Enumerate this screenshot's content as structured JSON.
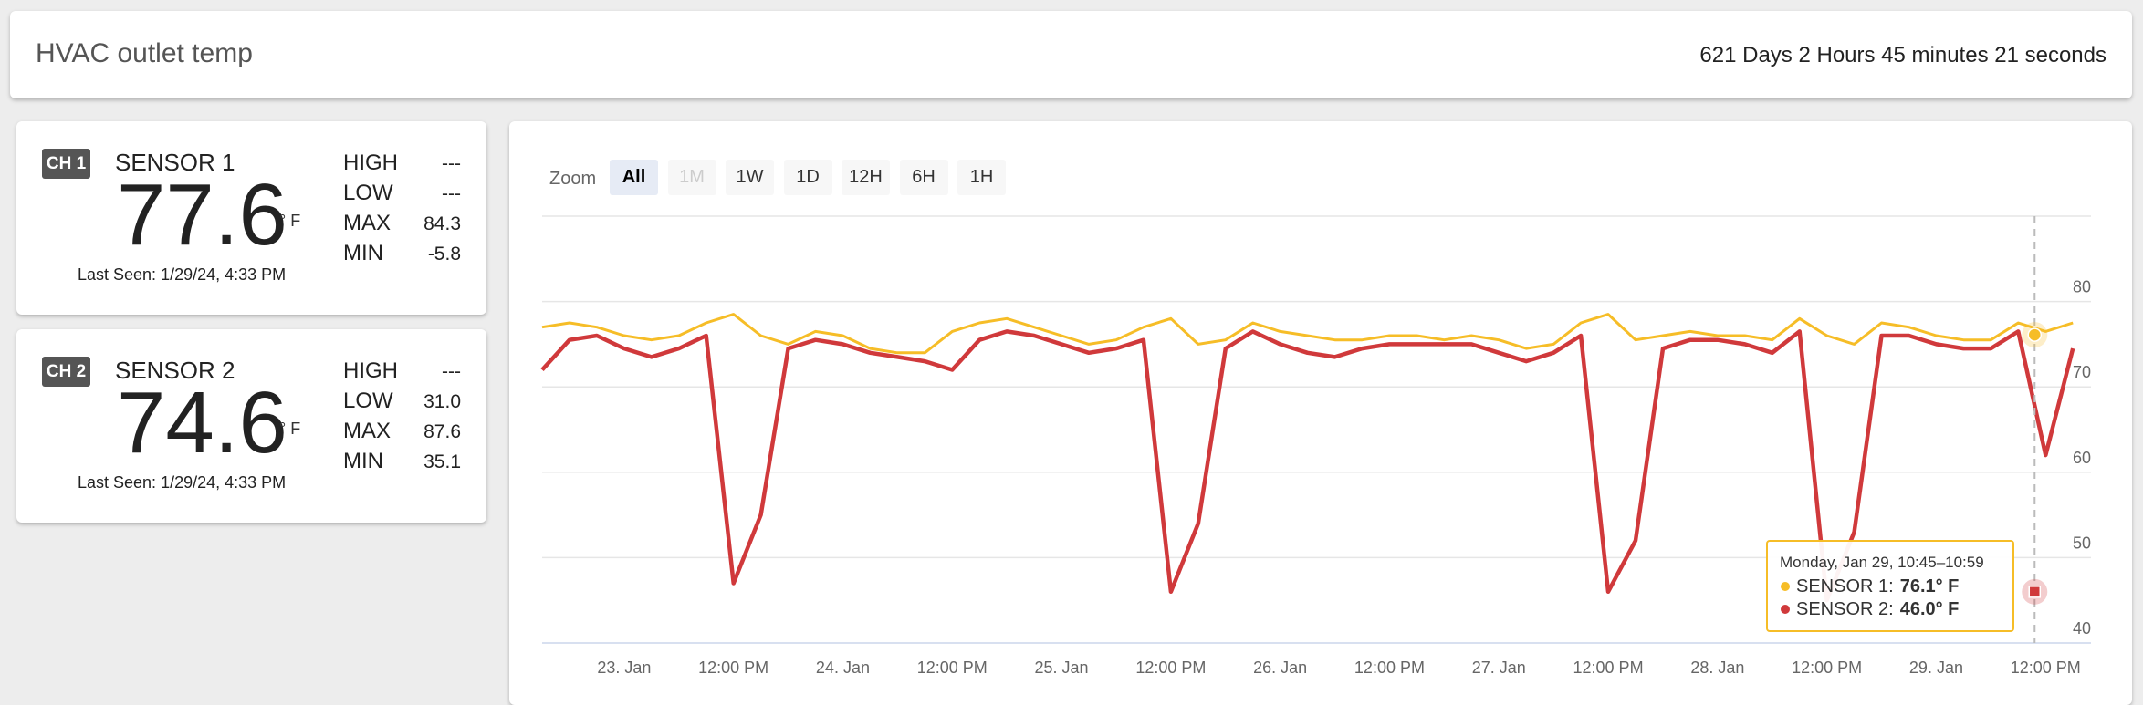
{
  "header": {
    "title": "HVAC outlet temp",
    "uptime": "621 Days 2 Hours 45 minutes 21 seconds"
  },
  "sensors": [
    {
      "channel": "CH 1",
      "name": "SENSOR 1",
      "reading": 77.6,
      "unit": "° F",
      "last_seen": "Last Seen: 1/29/24, 4:33 PM",
      "stats": [
        [
          "HIGH",
          "---"
        ],
        [
          "LOW",
          "---"
        ],
        [
          "MAX",
          84.3
        ],
        [
          "MIN",
          -5.8
        ]
      ]
    },
    {
      "channel": "CH 2",
      "name": "SENSOR 2",
      "reading": 74.6,
      "unit": "° F",
      "last_seen": "Last Seen: 1/29/24, 4:33 PM",
      "stats": [
        [
          "HIGH",
          "---"
        ],
        [
          "LOW",
          "31.0"
        ],
        [
          "MAX",
          87.6
        ],
        [
          "MIN",
          35.1
        ]
      ]
    }
  ],
  "zoom": {
    "label": "Zoom",
    "buttons": [
      "All",
      "1M",
      "1W",
      "1D",
      "12H",
      "6H",
      "1H"
    ]
  },
  "chart_data": {
    "type": "line",
    "categories": [
      null,
      null,
      null,
      "23. Jan",
      null,
      null,
      null,
      "12:00 PM",
      null,
      null,
      null,
      "24. Jan",
      null,
      null,
      null,
      "12:00 PM",
      null,
      null,
      null,
      "25. Jan",
      null,
      null,
      null,
      "12:00 PM",
      null,
      null,
      null,
      "26. Jan",
      null,
      null,
      null,
      "12:00 PM",
      null,
      null,
      null,
      "27. Jan",
      null,
      null,
      null,
      "12:00 PM",
      null,
      null,
      null,
      "28. Jan",
      null,
      null,
      null,
      "12:00 PM",
      null,
      null,
      null,
      "29. Jan",
      null,
      null,
      null,
      "12:00 PM",
      null
    ],
    "series": [
      {
        "color": "#f6bd27",
        "values": [
          77,
          77.5,
          77,
          76,
          75.5,
          76,
          77.5,
          78.5,
          76,
          75,
          76.5,
          76,
          74.5,
          74,
          74,
          76.5,
          77.5,
          78,
          77,
          76,
          75,
          75.5,
          77,
          78,
          75,
          75.5,
          77.5,
          76.5,
          76,
          75.5,
          75.5,
          76,
          76,
          75.5,
          76,
          75.5,
          74.5,
          75,
          77.5,
          78.5,
          75.5,
          76,
          76.5,
          76,
          76,
          75.5,
          78,
          76,
          75,
          77.5,
          77,
          76,
          75.5,
          75.5,
          77.5,
          76.5,
          77.5
        ]
      },
      {
        "color": "#d0393b",
        "values": [
          72,
          75.5,
          76,
          74.5,
          73.5,
          74.5,
          76,
          47,
          55,
          74.5,
          75.5,
          75,
          74,
          73.5,
          73,
          72,
          75.5,
          76.5,
          76,
          75,
          74,
          74.5,
          75.5,
          46,
          54,
          74.5,
          76.5,
          75,
          74,
          73.5,
          74.5,
          75,
          75,
          75,
          75,
          74,
          73,
          74,
          76,
          46,
          52,
          74.5,
          75.5,
          75.5,
          75,
          74,
          76.5,
          45,
          53,
          76,
          76,
          75,
          74.5,
          74.5,
          76.5,
          62,
          74.5
        ]
      }
    ],
    "ylim": [
      40,
      90
    ],
    "yticks": [
      40,
      50,
      60,
      70,
      80
    ],
    "grid": true,
    "tooltip": {
      "title": "Monday, Jan 29, 10:45–10:59",
      "rows": [
        {
          "name": "SENSOR 1:",
          "value": 76.1,
          "value_label": "76.1° F"
        },
        {
          "name": "SENSOR 2:",
          "value": 46,
          "value_label": "46.0° F"
        }
      ]
    }
  }
}
